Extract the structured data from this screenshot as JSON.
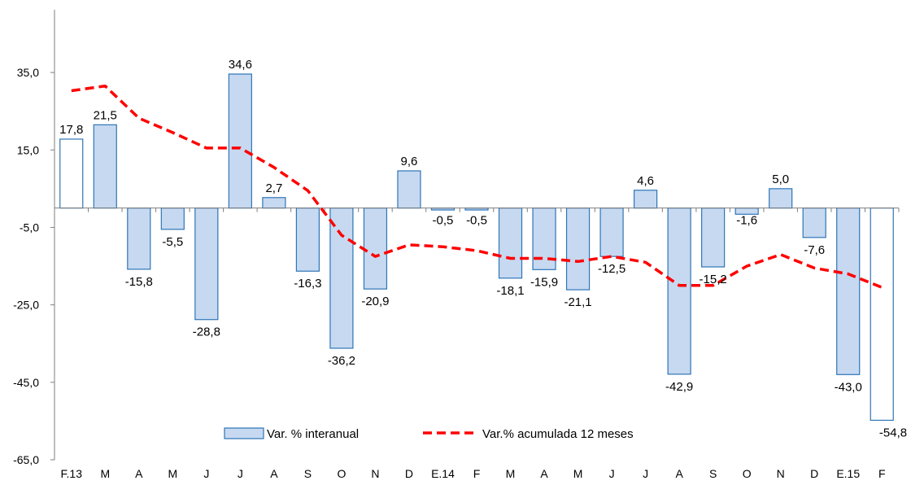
{
  "chart_data": {
    "type": "bar",
    "categories": [
      "F.13",
      "M",
      "A",
      "M",
      "J",
      "J",
      "A",
      "S",
      "O",
      "N",
      "D",
      "E.14",
      "F",
      "M",
      "A",
      "M",
      "J",
      "J",
      "A",
      "S",
      "O",
      "N",
      "D",
      "E.15",
      "F"
    ],
    "series": [
      {
        "name": "Var. % interanual",
        "type": "bar",
        "values": [
          17.8,
          21.5,
          -15.8,
          -5.5,
          -28.8,
          34.6,
          2.7,
          -16.3,
          -36.2,
          -20.9,
          9.6,
          -0.5,
          -0.5,
          -18.1,
          -15.9,
          -21.1,
          -12.5,
          4.6,
          -42.9,
          -15.2,
          -1.6,
          5.0,
          -7.6,
          -43.0,
          -54.8
        ],
        "labels": [
          "17,8",
          "21,5",
          "-15,8",
          "-5,5",
          "-28,8",
          "34,6",
          "2,7",
          "-16,3",
          "-36,2",
          "-20,9",
          "9,6",
          "-0,5",
          "-0,5",
          "-18,1",
          "-15,9",
          "-21,1",
          "-12,5",
          "4,6",
          "-42,9",
          "-15,2",
          "-1,6",
          "5,0",
          "-7,6",
          "-43,0",
          "-54,8"
        ],
        "highlight": [
          0,
          24
        ],
        "fill": "#c6d9f1",
        "highlight_fill": "#ffffff",
        "stroke": "#2e75b6"
      },
      {
        "name": "Var.% acumulada 12 meses",
        "type": "line",
        "style": "dashed",
        "color": "#ff0000",
        "values": [
          30.3,
          31.5,
          23.2,
          19.5,
          15.5,
          15.5,
          10.5,
          4.5,
          -7.0,
          -12.5,
          -9.5,
          -10.0,
          -11.0,
          -13.0,
          -13.0,
          -13.8,
          -12.5,
          -14.0,
          -20.0,
          -20.0,
          -15.0,
          -12.0,
          -15.5,
          -17.0,
          -20.5
        ]
      }
    ],
    "ylim": [
      -65,
      55
    ],
    "yticks": [
      35,
      15,
      -5,
      -25,
      -45,
      -65
    ],
    "ytick_labels": [
      "35,0",
      "15,0",
      "-5,0",
      "-25,0",
      "-45,0",
      "-65,0"
    ],
    "legend": {
      "position": "bottom-center",
      "items": [
        "Var. % interanual",
        "Var.% acumulada 12 meses"
      ]
    },
    "grid": false,
    "title": "",
    "xlabel": "",
    "ylabel": ""
  }
}
